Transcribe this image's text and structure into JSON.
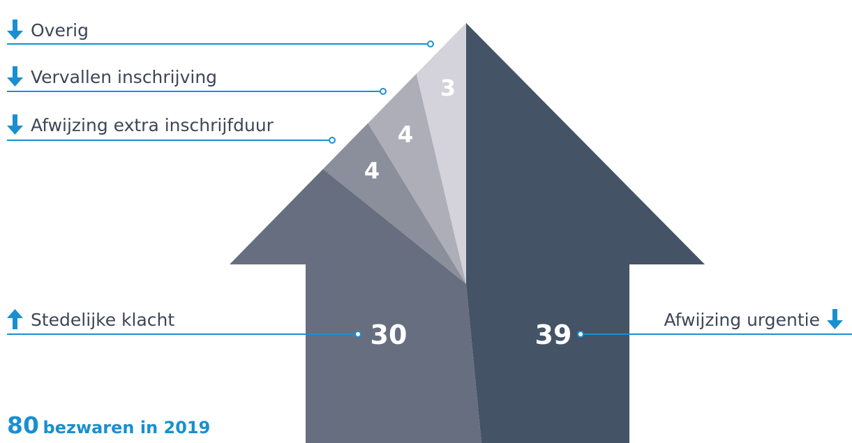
{
  "chart_data": {
    "type": "pie",
    "shape": "house-arrow",
    "total": 80,
    "slices": [
      {
        "name": "Afwijzing urgentie",
        "value": 39,
        "color": "#445366",
        "trend": "down"
      },
      {
        "name": "Stedelijke klacht",
        "value": 30,
        "color": "#676e7f",
        "trend": "up"
      },
      {
        "name": "Afwijzing extra inschrijfduur",
        "value": 4,
        "color": "#8b8e9b",
        "trend": "down"
      },
      {
        "name": "Vervallen inschrijving",
        "value": 4,
        "color": "#aeaeb9",
        "trend": "down"
      },
      {
        "name": "Overig",
        "value": 3,
        "color": "#d4d3dc",
        "trend": "down"
      }
    ]
  },
  "colors": {
    "accent": "#1a8fd0",
    "label": "#3d4657",
    "value_text": "#ffffff"
  },
  "icons": {
    "trend_up": "arrow-up-icon",
    "trend_down": "arrow-down-icon"
  },
  "footer": {
    "total_value": "80",
    "total_label": "bezwaren in 2019"
  }
}
